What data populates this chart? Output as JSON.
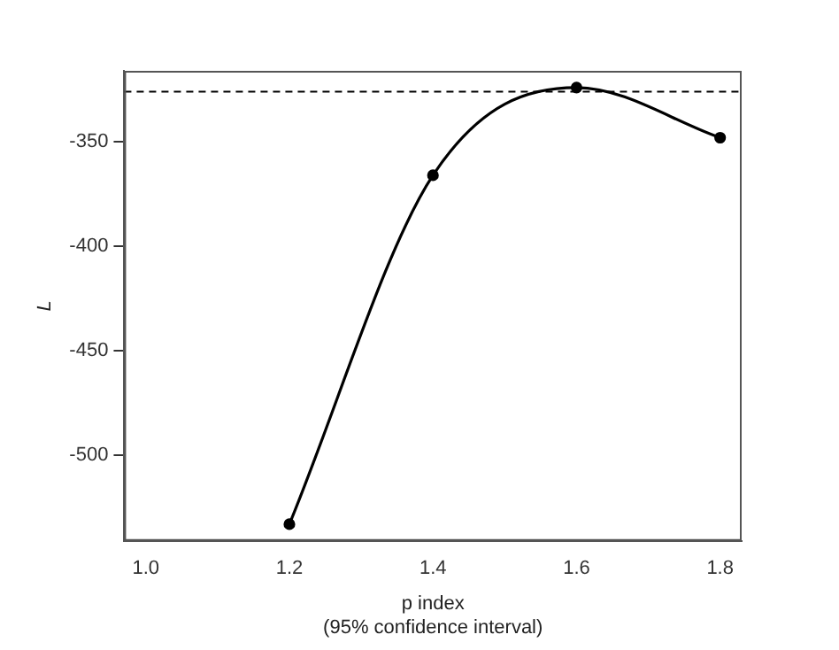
{
  "chart_data": {
    "type": "line",
    "xlabel": "p index",
    "ylabel": "L",
    "annotations": [
      "(95% confidence interval)"
    ],
    "x": [
      1.2,
      1.4,
      1.6,
      1.8
    ],
    "series": [
      {
        "color": "#000000",
        "values": [
          -533,
          -366,
          -324,
          -348
        ]
      }
    ],
    "xlim": [
      0.97,
      1.83
    ],
    "xticks": [
      {
        "value": 1.0,
        "label": "1.0"
      },
      {
        "value": 1.2,
        "label": "1.2"
      },
      {
        "value": 1.4,
        "label": "1.4"
      },
      {
        "value": 1.6,
        "label": "1.6"
      },
      {
        "value": 1.8,
        "label": "1.8"
      }
    ],
    "ylim": [
      -541,
      -316
    ],
    "yticks": [
      -350,
      -400,
      -450,
      -500
    ],
    "ref_lines": [
      {
        "axis": "y",
        "value": -326,
        "line_style": "dashed",
        "color": "#000000"
      }
    ],
    "grid": false,
    "legend": false,
    "marker": "circle",
    "line_style": "solid"
  }
}
